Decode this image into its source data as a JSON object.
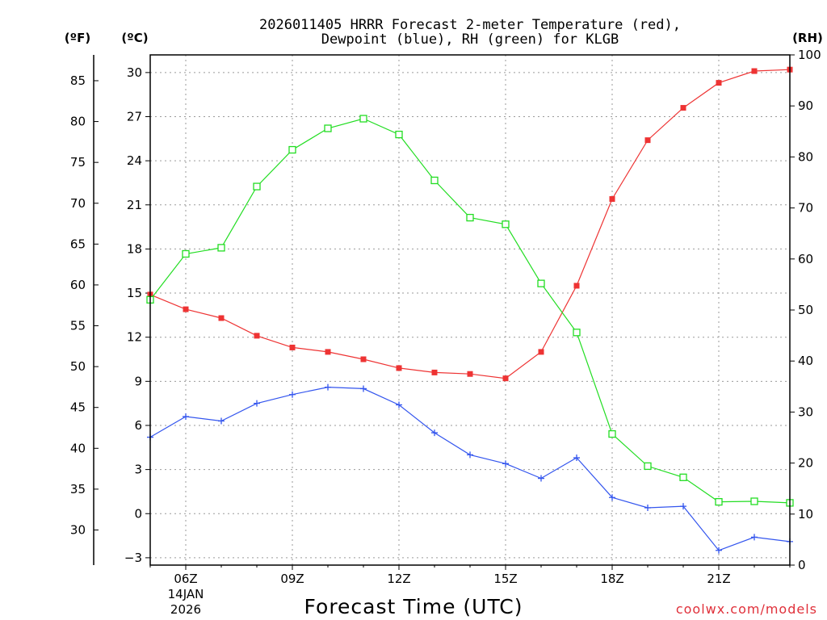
{
  "chart_data": {
    "type": "line",
    "title_line1": "2026011405 HRRR Forecast 2-meter Temperature (red),",
    "title_line2": "Dewpoint (blue), RH (green) for KLGB",
    "xlabel": "Forecast Time (UTC)",
    "credit": "coolwx.com/models",
    "unit_f": "(ºF)",
    "unit_c": "(ºC)",
    "unit_rh": "(RH)",
    "x_hours": [
      5,
      6,
      7,
      8,
      9,
      10,
      11,
      12,
      13,
      14,
      15,
      16,
      17,
      18,
      19,
      20,
      21,
      22,
      23
    ],
    "x_ticks": [
      {
        "hour": 6,
        "label": "06Z",
        "sub1": "14JAN",
        "sub2": "2026"
      },
      {
        "hour": 9,
        "label": "09Z"
      },
      {
        "hour": 12,
        "label": "12Z"
      },
      {
        "hour": 15,
        "label": "15Z"
      },
      {
        "hour": 18,
        "label": "18Z"
      },
      {
        "hour": 21,
        "label": "21Z"
      }
    ],
    "y_celsius_ticks": [
      "-3",
      "0",
      "3",
      "6",
      "9",
      "12",
      "15",
      "18",
      "21",
      "24",
      "27",
      "30"
    ],
    "y_fahrenheit_ticks": [
      "30",
      "35",
      "40",
      "45",
      "50",
      "55",
      "60",
      "65",
      "70",
      "75",
      "80",
      "85"
    ],
    "y_rh_ticks": [
      "0",
      "10",
      "20",
      "30",
      "40",
      "50",
      "60",
      "70",
      "80",
      "90",
      "100"
    ],
    "ylim_celsius": [
      -3.5,
      31.2
    ],
    "ylim_rh": [
      0,
      100
    ],
    "series": [
      {
        "name": "Temperature",
        "color": "#ee3333",
        "marker": "filled-square",
        "axis": "celsius",
        "values": [
          14.9,
          13.9,
          13.3,
          12.1,
          11.3,
          11.0,
          10.5,
          9.9,
          9.6,
          9.5,
          9.2,
          11.0,
          15.5,
          21.4,
          25.4,
          27.6,
          29.3,
          30.1,
          30.2
        ]
      },
      {
        "name": "Dewpoint",
        "color": "#3355ee",
        "marker": "plus",
        "axis": "celsius",
        "values": [
          5.2,
          6.6,
          6.3,
          7.5,
          8.1,
          8.6,
          8.5,
          7.4,
          5.5,
          4.0,
          3.4,
          2.4,
          3.8,
          1.1,
          0.4,
          0.5,
          -2.5,
          -1.6,
          -1.9
        ]
      },
      {
        "name": "RH",
        "color": "#22dd22",
        "marker": "open-square",
        "axis": "rh",
        "values": [
          52.0,
          61.0,
          62.2,
          74.2,
          81.4,
          85.6,
          87.5,
          84.4,
          75.4,
          68.1,
          66.8,
          55.2,
          45.6,
          25.7,
          19.4,
          17.2,
          12.4,
          12.5,
          12.2
        ]
      }
    ]
  }
}
